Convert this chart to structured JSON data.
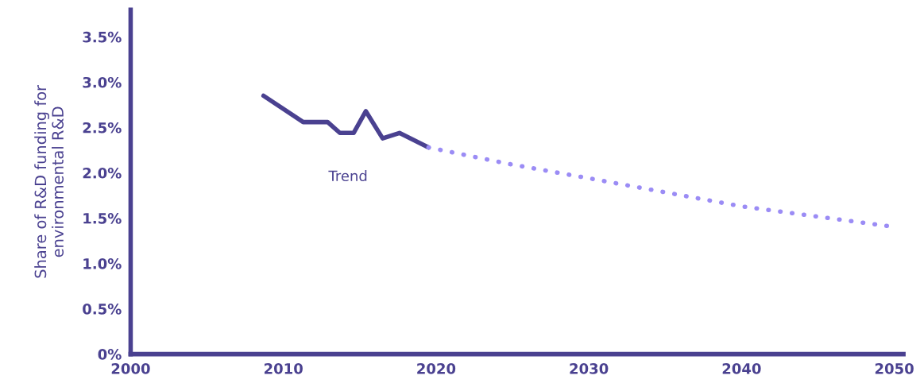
{
  "chart_data": {
    "type": "line",
    "ylabel": "Share of R&D funding for\nenvironmental R&D",
    "xlim": [
      2000,
      2050.6
    ],
    "xticks": [
      2000,
      2010,
      2020,
      2030,
      2040,
      2050
    ],
    "ylim": [
      0,
      3.8
    ],
    "yticks": [
      {
        "value": 0,
        "label": "0%"
      },
      {
        "value": 0.5,
        "label": "0.5%"
      },
      {
        "value": 1.0,
        "label": "1.0%"
      },
      {
        "value": 1.5,
        "label": "1.5%"
      },
      {
        "value": 2.0,
        "label": "2.0%"
      },
      {
        "value": 2.5,
        "label": "2.5%"
      },
      {
        "value": 3.0,
        "label": "3.0%"
      },
      {
        "value": 3.5,
        "label": "3.5%"
      }
    ],
    "grid": false,
    "legend": false,
    "series": [
      {
        "name": "Trend",
        "color": "#4a4190",
        "line_style": "solid",
        "x": [
          2008.7,
          2011.3,
          2012.9,
          2013.7,
          2014.6,
          2015.4,
          2016.5,
          2017.6,
          2019.5
        ],
        "values": [
          2.85,
          2.56,
          2.56,
          2.44,
          2.44,
          2.68,
          2.38,
          2.44,
          2.28
        ]
      },
      {
        "color": "#9b8cf5",
        "line_style": "dotted",
        "x": [
          2019.5,
          2024.7,
          2030,
          2040,
          2049.7
        ],
        "values": [
          2.28,
          2.1,
          1.94,
          1.63,
          1.41
        ]
      }
    ]
  }
}
